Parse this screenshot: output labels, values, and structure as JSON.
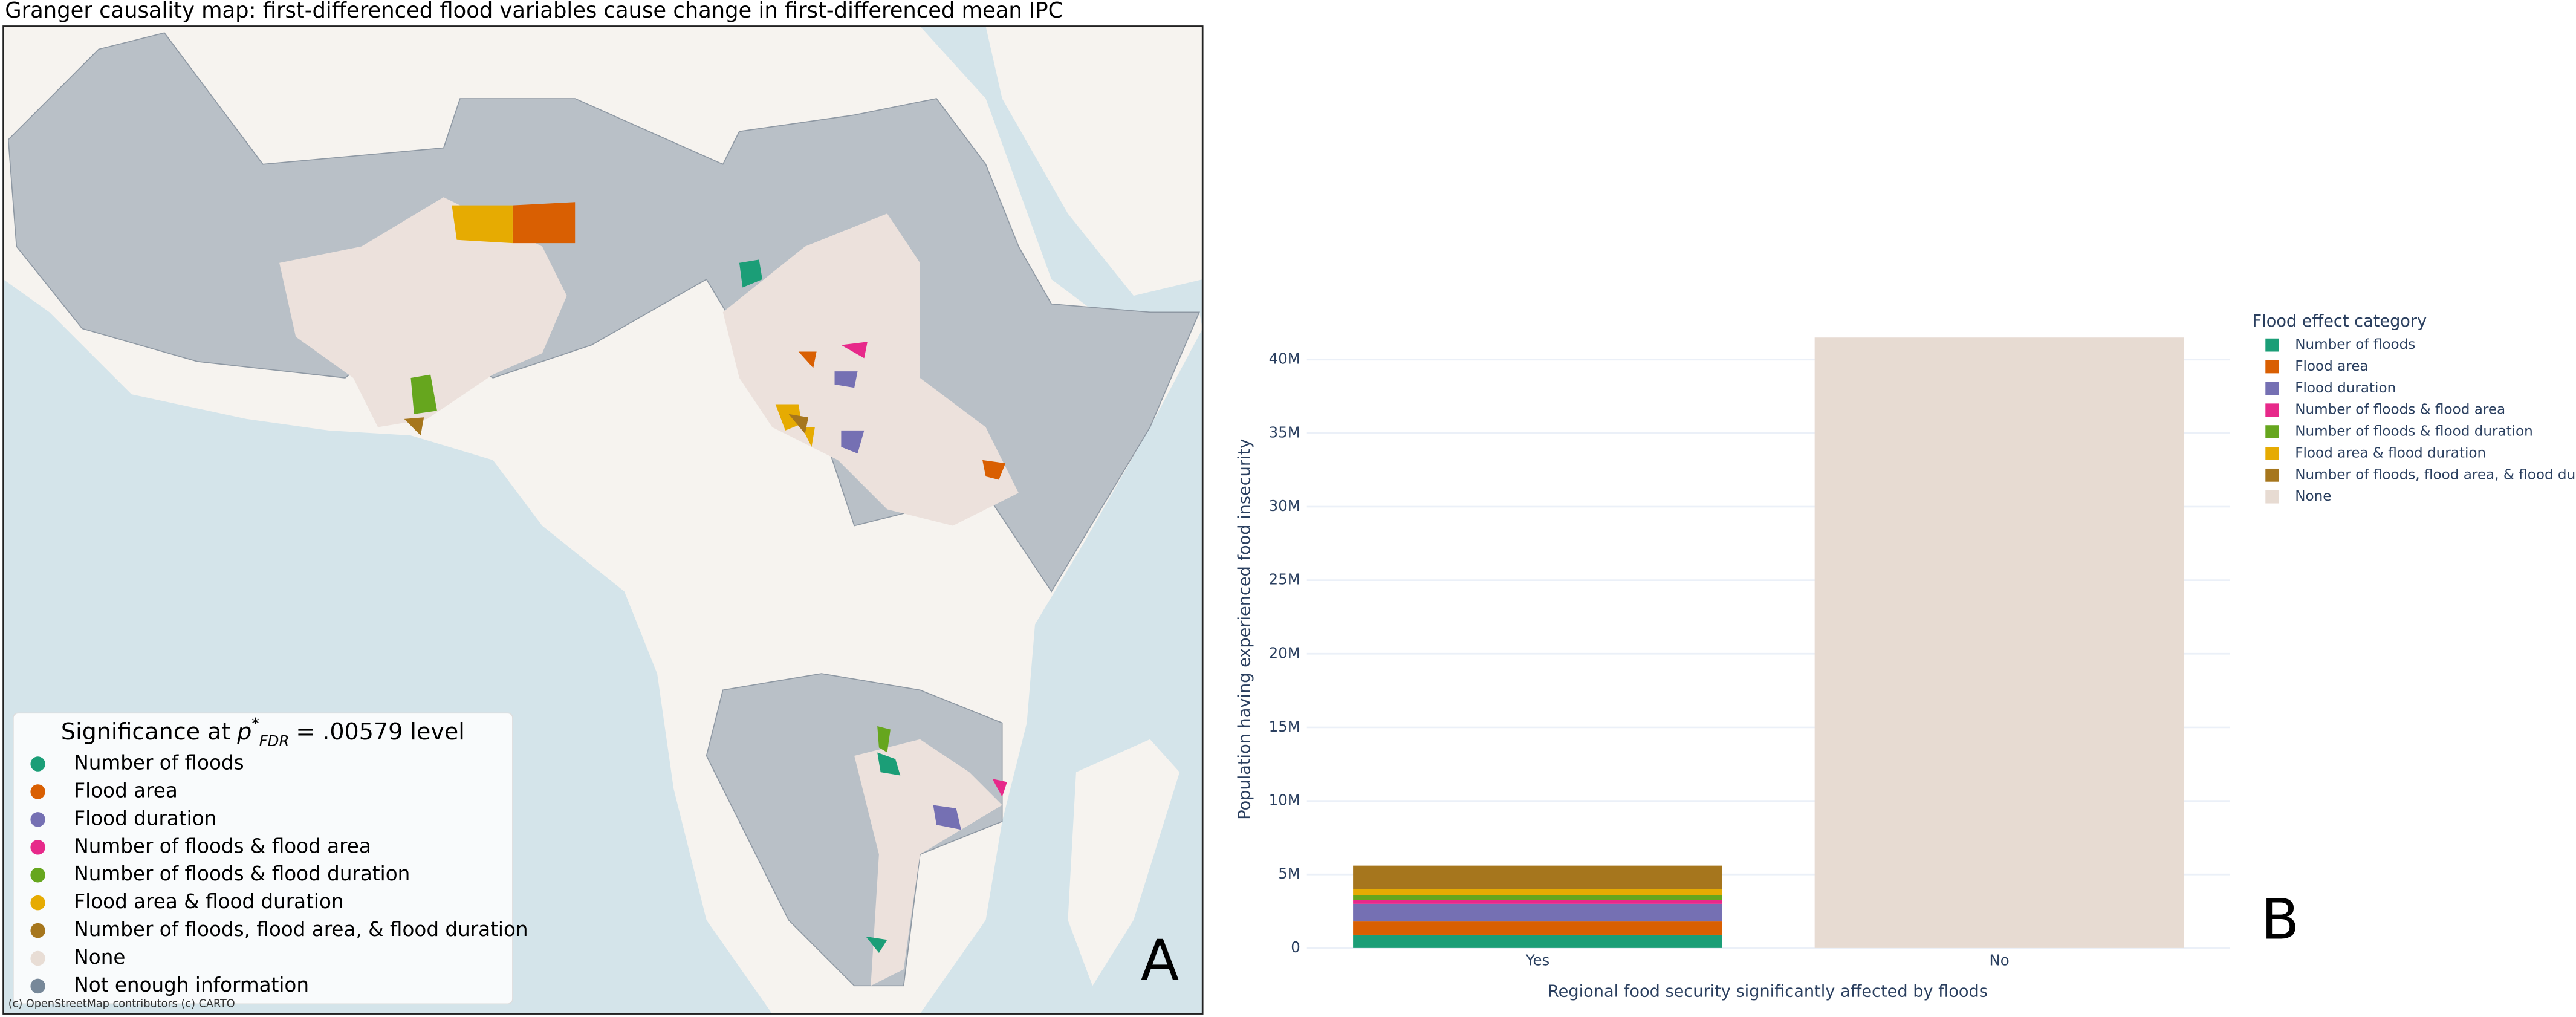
{
  "chart_data": [
    {
      "type": "map",
      "title": "Granger causality map: first-differenced flood variables cause change in first-differenced mean IPC",
      "legend_title": [
        "Significance at",
        "p",
        "*",
        "FDR",
        "= .00579 level"
      ],
      "legend": [
        {
          "name": "Number of floods",
          "color": "#1b9e77"
        },
        {
          "name": "Flood area",
          "color": "#d95f02"
        },
        {
          "name": "Flood duration",
          "color": "#7570b3"
        },
        {
          "name": "Number of floods & flood area",
          "color": "#e7298a"
        },
        {
          "name": "Number of floods & flood duration",
          "color": "#66a61e"
        },
        {
          "name": "Flood area & flood duration",
          "color": "#e6ab02"
        },
        {
          "name": "Number of floods, flood area, & flood duration",
          "color": "#a6761d"
        },
        {
          "name": "None",
          "color": "#e8ddd5"
        },
        {
          "name": "Not enough information",
          "color": "#778899"
        }
      ],
      "attribution": "(c) OpenStreetMap contributors (c) CARTO",
      "panel_label": "A"
    },
    {
      "type": "bar",
      "stacked": true,
      "categories": [
        "Yes",
        "No"
      ],
      "series": [
        {
          "name": "Number of floods",
          "color": "#1b9e77",
          "values": [
            900000,
            0
          ]
        },
        {
          "name": "Flood area",
          "color": "#d95f02",
          "values": [
            900000,
            0
          ]
        },
        {
          "name": "Flood duration",
          "color": "#7570b3",
          "values": [
            1200000,
            0
          ]
        },
        {
          "name": "Number of floods & flood area",
          "color": "#e7298a",
          "values": [
            250000,
            0
          ]
        },
        {
          "name": "Number of floods & flood duration",
          "color": "#66a61e",
          "values": [
            350000,
            0
          ]
        },
        {
          "name": "Flood area & flood duration",
          "color": "#e6ab02",
          "values": [
            400000,
            0
          ]
        },
        {
          "name": "Number of floods, flood area, & flood duration",
          "color": "#a6761d",
          "values": [
            1600000,
            0
          ]
        },
        {
          "name": "None",
          "color": "#e7dbd2",
          "values": [
            0,
            41500000
          ]
        }
      ],
      "xlabel": "Regional food security significantly affected by floods",
      "ylabel": "Population having experienced food insecurity",
      "ylim": [
        0,
        43000000
      ],
      "yticks": [
        0,
        {
          "value": 5000000,
          "label": "5M"
        },
        {
          "value": 10000000,
          "label": "10M"
        },
        {
          "value": 15000000,
          "label": "15M"
        },
        {
          "value": 20000000,
          "label": "20M"
        },
        {
          "value": 25000000,
          "label": "25M"
        },
        {
          "value": 30000000,
          "label": "30M"
        },
        {
          "value": 35000000,
          "label": "35M"
        },
        {
          "value": 40000000,
          "label": "40M"
        }
      ],
      "grid": true,
      "legend_title": "Flood effect category",
      "panel_label": "B"
    }
  ]
}
